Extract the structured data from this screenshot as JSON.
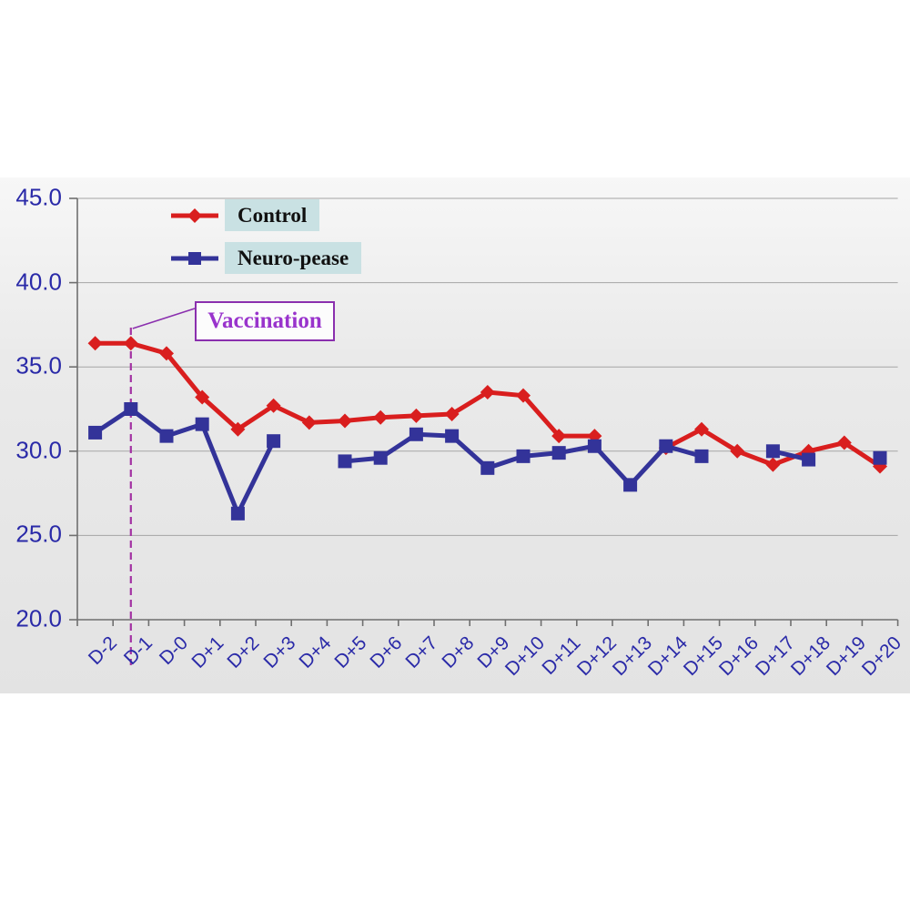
{
  "chart_data": {
    "type": "line",
    "title": "",
    "xlabel": "",
    "ylabel": "",
    "categories": [
      "D-2",
      "D-1",
      "D-0",
      "D+1",
      "D+2",
      "D+3",
      "D+4",
      "D+5",
      "D+6",
      "D+7",
      "D+8",
      "D+9",
      "D+10",
      "D+11",
      "D+12",
      "D+13",
      "D+14",
      "D+15",
      "D+16",
      "D+17",
      "D+18",
      "D+19",
      "D+20"
    ],
    "series": [
      {
        "name": "Control",
        "marker": "diamond",
        "color": "#d91e1e",
        "values": [
          36.4,
          36.4,
          35.8,
          33.2,
          31.3,
          32.7,
          31.7,
          31.8,
          32.0,
          32.1,
          32.2,
          33.5,
          33.3,
          30.9,
          30.9,
          null,
          30.2,
          31.3,
          30.0,
          29.2,
          30.0,
          30.5,
          29.1
        ]
      },
      {
        "name": "Neuro-pease",
        "marker": "square",
        "color": "#333399",
        "values": [
          31.1,
          32.5,
          30.9,
          31.6,
          26.3,
          30.6,
          null,
          29.4,
          29.6,
          31.0,
          30.9,
          29.0,
          29.7,
          29.9,
          30.3,
          28.0,
          30.3,
          29.7,
          null,
          30.0,
          29.5,
          null,
          29.6
        ]
      }
    ],
    "ylim": [
      20,
      45
    ],
    "yticks": [
      45,
      40,
      35,
      30,
      25,
      20
    ],
    "ytick_labels": [
      "45.0",
      "40.0",
      "35.0",
      "30.0",
      "25.0",
      "20.0"
    ],
    "grid": "horizontal",
    "legend_position": "top-left-inside",
    "annotation": {
      "label": "Vaccination",
      "at_category": "D-1",
      "line_style": "dashed-vertical"
    }
  },
  "colors": {
    "series_control": "#d91e1e",
    "series_neuropease": "#333399",
    "axis_text": "#2a2aa8",
    "gridline": "#a5a5a5",
    "axis_line": "#6f6f6f",
    "legend_bg": "#c9e1e3",
    "annotation_text": "#9933cc",
    "annotation_border": "#8a2fae",
    "vaccination_line": "#a333a3"
  }
}
